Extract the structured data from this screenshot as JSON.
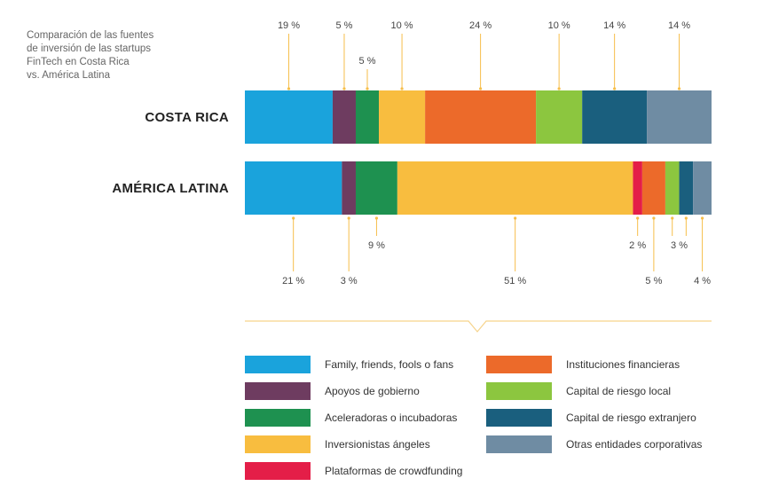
{
  "caption": {
    "lines": [
      "Comparación de las fuentes",
      "de inversión de las startups",
      "FinTech en Costa Rica",
      "vs. América Latina"
    ]
  },
  "chart_data": {
    "type": "stacked-bar-horizontal",
    "title": "Comparación de las fuentes de inversión de las startups FinTech en Costa Rica vs. América Latina",
    "unit": "%",
    "categories": [
      "Costa Rica",
      "América Latina"
    ],
    "row_labels": [
      "COSTA RICA",
      "AMÉRICA LATINA"
    ],
    "series": [
      {
        "name": "Family, friends, fools o fans",
        "color": "#1AA3DC",
        "values": [
          19,
          21
        ],
        "labels": [
          "19 %",
          "21 %"
        ]
      },
      {
        "name": "Apoyos de gobierno",
        "color": "#6E3C60",
        "values": [
          5,
          3
        ],
        "labels": [
          "5 %",
          "3 %"
        ]
      },
      {
        "name": "Aceleradoras o incubadoras",
        "color": "#1E9150",
        "values": [
          5,
          9
        ],
        "labels": [
          "5 %",
          "9 %"
        ]
      },
      {
        "name": "Inversionistas ángeles",
        "color": "#F8BD3F",
        "values": [
          10,
          51
        ],
        "labels": [
          "10 %",
          "51 %"
        ]
      },
      {
        "name": "Plataformas de crowdfunding",
        "color": "#E41E48",
        "values": [
          0,
          2
        ],
        "labels": [
          "",
          "2 %"
        ]
      },
      {
        "name": "Instituciones financieras",
        "color": "#EC6A2A",
        "values": [
          24,
          5
        ],
        "labels": [
          "24 %",
          "5 %"
        ]
      },
      {
        "name": "Capital de riesgo local",
        "color": "#8CC63F",
        "values": [
          10,
          3
        ],
        "labels": [
          "10 %",
          "3 %"
        ]
      },
      {
        "name": "Capital de riesgo extranjero",
        "color": "#1A5F7E",
        "values": [
          14,
          3
        ],
        "labels": [
          "14 %",
          "3 %"
        ]
      },
      {
        "name": "Otras entidades corporativas",
        "color": "#6F8CA3",
        "values": [
          14,
          4
        ],
        "labels": [
          "14 %",
          "4 %"
        ]
      }
    ],
    "legend": {
      "left": [
        "Family, friends, fools o fans",
        "Apoyos de gobierno",
        "Aceleradoras o incubadoras",
        "Inversionistas ángeles",
        "Plataformas de crowdfunding"
      ],
      "right": [
        "Instituciones financieras",
        "Capital de riesgo local",
        "Capital de riesgo extranjero",
        "Otras entidades corporativas"
      ]
    }
  }
}
